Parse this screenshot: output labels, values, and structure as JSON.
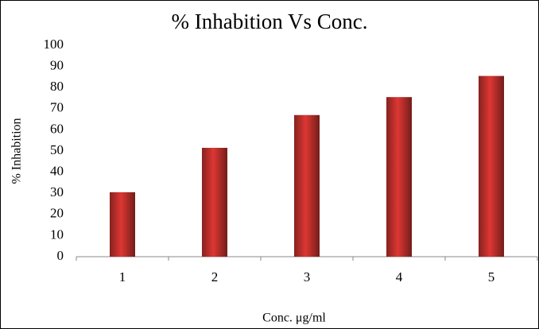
{
  "chart_data": {
    "type": "bar",
    "title": "% Inhabition Vs Conc.",
    "x_label": "Conc. μg/ml",
    "y_label": "% Inhabition",
    "categories": [
      "1",
      "2",
      "3",
      "4",
      "5"
    ],
    "values": [
      30.5,
      51.5,
      67,
      75.5,
      85.5
    ],
    "color": "#c0302c",
    "ylim": [
      0,
      100
    ],
    "yticks": [
      0,
      10,
      20,
      30,
      40,
      50,
      60,
      70,
      80,
      90,
      100
    ],
    "grid": false
  }
}
